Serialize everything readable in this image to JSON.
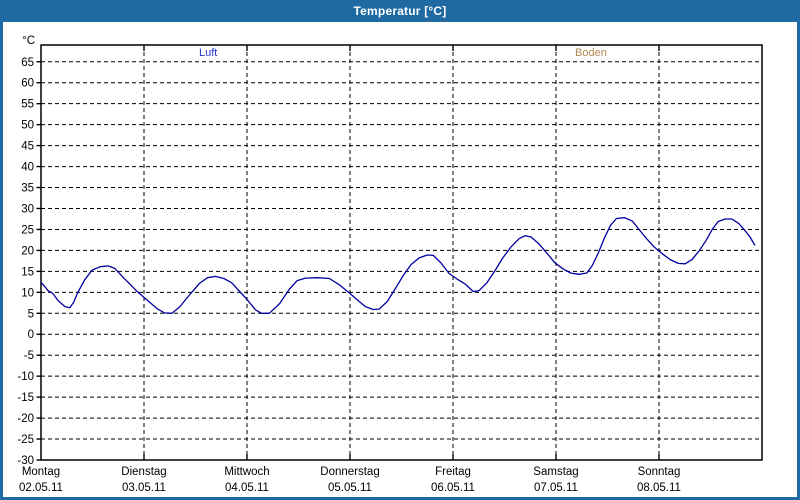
{
  "window": {
    "title": "Temperatur [°C]",
    "titlebar_color": "#1F6AA3",
    "border_color": "#1F6AA3"
  },
  "legend": {
    "items": [
      {
        "label": "Luft",
        "color": "#2233CC"
      },
      {
        "label": "Boden",
        "color": "#B08850"
      }
    ]
  },
  "chart_data": {
    "type": "line",
    "title": "Temperatur [°C]",
    "unit_label": "°C",
    "ylim": [
      -30,
      69
    ],
    "yticks": [
      65,
      60,
      55,
      50,
      45,
      40,
      35,
      30,
      25,
      20,
      15,
      10,
      5,
      0,
      -5,
      -10,
      -15,
      -20,
      -25,
      -30
    ],
    "grid": "dashed",
    "axis_color": "#000000",
    "x_axis": {
      "hours_total": 168,
      "day_boundaries_hours": [
        24,
        48,
        72,
        96,
        120,
        144
      ],
      "days": [
        {
          "name": "Montag",
          "date": "02.05.11"
        },
        {
          "name": "Dienstag",
          "date": "03.05.11"
        },
        {
          "name": "Mittwoch",
          "date": "04.05.11"
        },
        {
          "name": "Donnerstag",
          "date": "05.05.11"
        },
        {
          "name": "Freitag",
          "date": "06.05.11"
        },
        {
          "name": "Samstag",
          "date": "07.05.11"
        },
        {
          "name": "Sonntag",
          "date": "08.05.11"
        }
      ]
    },
    "series": [
      {
        "name": "Luft",
        "color": "#0000A0",
        "points": [
          [
            0,
            12.4
          ],
          [
            1.2,
            11.0
          ],
          [
            1.6,
            10.4
          ],
          [
            2.8,
            9.7
          ],
          [
            4,
            8.0
          ],
          [
            5.6,
            6.6
          ],
          [
            6.7,
            6.3
          ],
          [
            7.6,
            7.6
          ],
          [
            8.6,
            10.0
          ],
          [
            10.2,
            13.0
          ],
          [
            11.9,
            15.3
          ],
          [
            13.7,
            16.1
          ],
          [
            15.6,
            16.3
          ],
          [
            17.2,
            15.7
          ],
          [
            19.5,
            13.2
          ],
          [
            22.3,
            10.3
          ],
          [
            24.9,
            8.0
          ],
          [
            27.2,
            6.0
          ],
          [
            28.8,
            5.1
          ],
          [
            30.5,
            5.0
          ],
          [
            32.3,
            6.5
          ],
          [
            34.7,
            9.5
          ],
          [
            37,
            12.2
          ],
          [
            38.8,
            13.5
          ],
          [
            40.7,
            13.8
          ],
          [
            42.6,
            13.3
          ],
          [
            44.4,
            12.3
          ],
          [
            46.3,
            10.2
          ],
          [
            48.1,
            8.2
          ],
          [
            50,
            5.8
          ],
          [
            51.4,
            5.0
          ],
          [
            53.2,
            5.0
          ],
          [
            55.6,
            7.3
          ],
          [
            57.9,
            10.8
          ],
          [
            59.7,
            12.8
          ],
          [
            61.6,
            13.4
          ],
          [
            64.4,
            13.5
          ],
          [
            67.2,
            13.3
          ],
          [
            69.5,
            11.8
          ],
          [
            71.8,
            9.9
          ],
          [
            73.7,
            8.2
          ],
          [
            75.6,
            6.6
          ],
          [
            77.4,
            5.9
          ],
          [
            78.8,
            6.0
          ],
          [
            80.7,
            7.8
          ],
          [
            82.5,
            10.8
          ],
          [
            84.4,
            14.0
          ],
          [
            86.2,
            16.6
          ],
          [
            88.1,
            18.2
          ],
          [
            90,
            18.9
          ],
          [
            91.4,
            18.8
          ],
          [
            93.2,
            17.0
          ],
          [
            95.1,
            14.5
          ],
          [
            96.9,
            13.2
          ],
          [
            98.8,
            12.0
          ],
          [
            100.7,
            10.2
          ],
          [
            102.1,
            10.4
          ],
          [
            103.9,
            12.3
          ],
          [
            105.8,
            15.2
          ],
          [
            107.6,
            18.2
          ],
          [
            109.5,
            20.8
          ],
          [
            111.4,
            22.8
          ],
          [
            112.8,
            23.5
          ],
          [
            114.2,
            23.2
          ],
          [
            116,
            21.6
          ],
          [
            117.9,
            19.3
          ],
          [
            119.7,
            17.1
          ],
          [
            121.6,
            15.6
          ],
          [
            123.4,
            14.6
          ],
          [
            125.3,
            14.3
          ],
          [
            127.2,
            14.6
          ],
          [
            128.5,
            16.5
          ],
          [
            129.9,
            19.5
          ],
          [
            131.3,
            23.0
          ],
          [
            132.7,
            26.0
          ],
          [
            134.1,
            27.6
          ],
          [
            136,
            27.8
          ],
          [
            137.8,
            27.0
          ],
          [
            139.2,
            25.2
          ],
          [
            141.1,
            22.8
          ],
          [
            142.9,
            20.8
          ],
          [
            144.8,
            19.2
          ],
          [
            146.6,
            17.8
          ],
          [
            148.5,
            16.9
          ],
          [
            150.1,
            16.8
          ],
          [
            151.7,
            17.8
          ],
          [
            153.3,
            19.8
          ],
          [
            155,
            22.4
          ],
          [
            156.4,
            25.0
          ],
          [
            157.8,
            26.9
          ],
          [
            159.4,
            27.5
          ],
          [
            161,
            27.5
          ],
          [
            162.6,
            26.4
          ],
          [
            164,
            24.8
          ],
          [
            165.2,
            23.2
          ],
          [
            166.3,
            21.3
          ]
        ]
      }
    ]
  }
}
